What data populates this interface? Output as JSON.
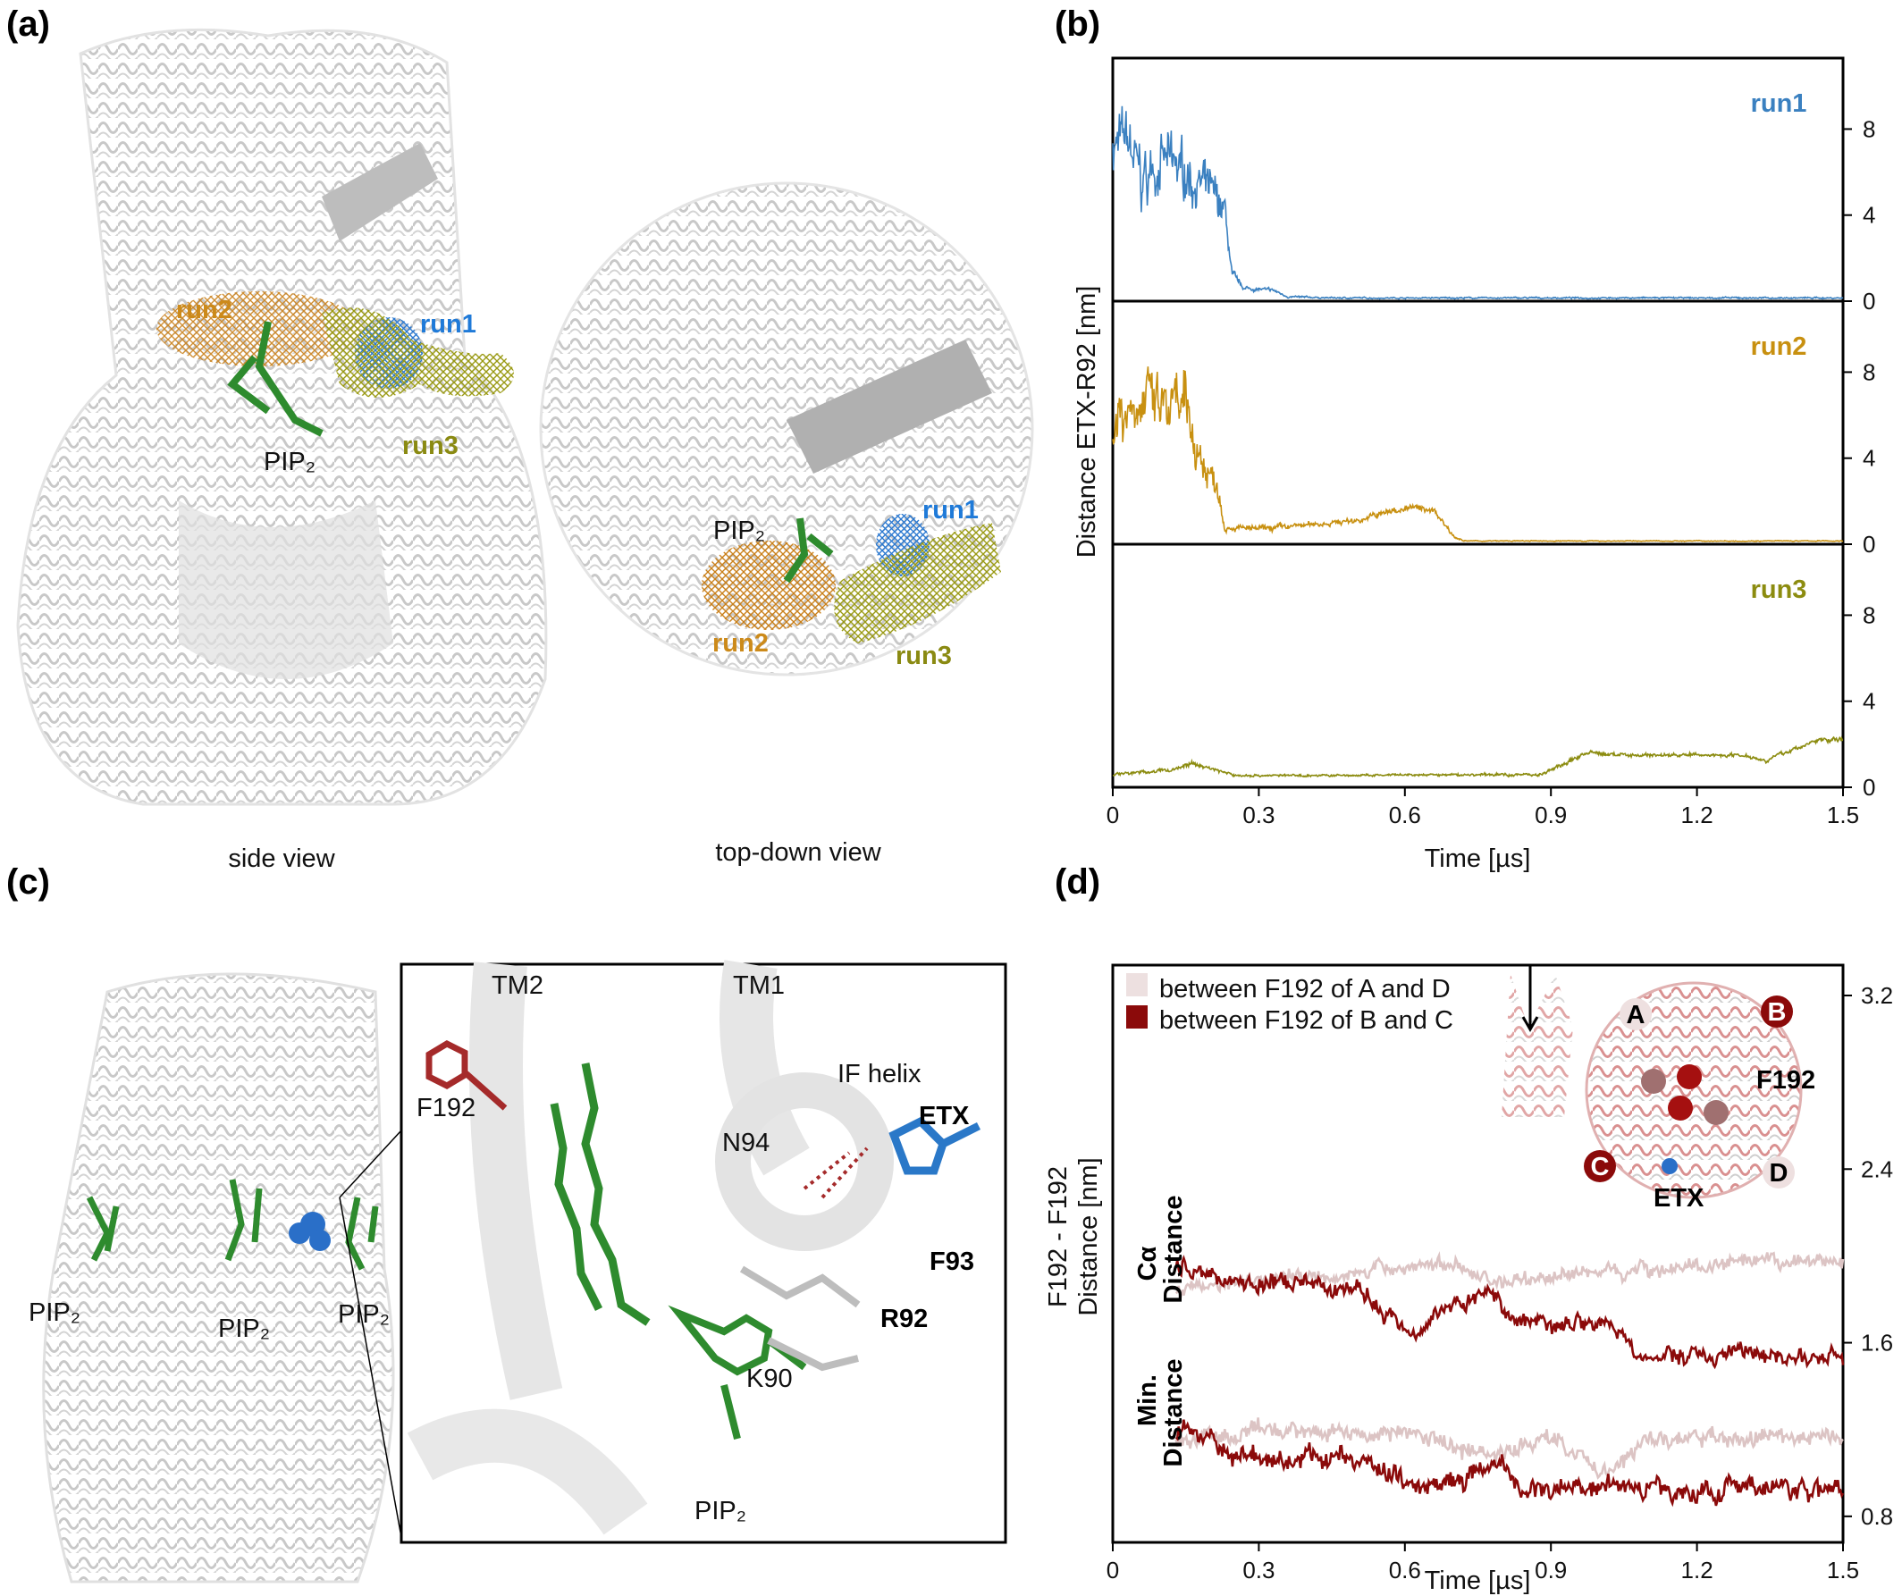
{
  "panel_labels": {
    "a": "(a)",
    "b": "(b)",
    "c": "(c)",
    "d": "(d)"
  },
  "panel_a": {
    "side_view": {
      "caption": "side view",
      "run1": "run1",
      "run2": "run2",
      "run3": "run3",
      "pip2": "PIP₂"
    },
    "top_view": {
      "caption": "top-down view",
      "run1": "run1",
      "run2": "run2",
      "run3": "run3",
      "pip2": "PIP₂"
    },
    "colors": {
      "run1": "#1f7ad8",
      "run2": "#cc8a1a",
      "run3": "#8a8a12",
      "pip2": "#2e8b2e"
    }
  },
  "panel_c": {
    "overview_labels": [
      "PIP₂",
      "PIP₂",
      "PIP₂"
    ],
    "inset_labels": {
      "tm2": "TM2",
      "tm1": "TM1",
      "if_helix": "IF helix",
      "etx": "ETX",
      "f192": "F192",
      "n94": "N94",
      "f93": "F93",
      "r92": "R92",
      "k90": "K90",
      "pip2": "PIP₂"
    }
  },
  "panel_d_inset": {
    "a": "A",
    "b": "B",
    "c": "C",
    "d": "D",
    "f192": "F192",
    "etx": "ETX"
  },
  "chart_data": [
    {
      "type": "line",
      "panel": "b",
      "title": "",
      "xlabel": "Time [µs]",
      "ylabel": "Distance ETX-R92 [nm]",
      "xlim": [
        0,
        1.5
      ],
      "ylim": [
        0,
        11.3
      ],
      "xticks": [
        "0",
        "0.3",
        "0.6",
        "0.9",
        "1.2",
        "1.5"
      ],
      "yticks": [
        "0",
        "4",
        "8"
      ],
      "grid": false,
      "layout": "three stacked subplots, shared x-axis, y-axis on right",
      "series": [
        {
          "name": "run1",
          "color": "#3a80c0",
          "t": [
            0,
            0.03,
            0.06,
            0.1,
            0.15,
            0.2,
            0.23,
            0.245,
            0.27,
            0.33,
            0.36,
            0.45,
            1.5
          ],
          "v": [
            7.2,
            7.5,
            5.5,
            6.5,
            6.0,
            5.0,
            4.2,
            1.2,
            0.6,
            0.5,
            0.2,
            0.15,
            0.15
          ],
          "noise": [
            1.8,
            1.8,
            2.0,
            1.8,
            1.8,
            1.4,
            1.0,
            0.3,
            0.15,
            0.1,
            0.06,
            0.05,
            0.05
          ]
        },
        {
          "name": "run2",
          "color": "#c89010",
          "t": [
            0,
            0.05,
            0.1,
            0.15,
            0.19,
            0.215,
            0.23,
            0.3,
            0.4,
            0.5,
            0.6,
            0.66,
            0.7,
            0.72,
            1.5
          ],
          "v": [
            6.0,
            6.8,
            6.2,
            6.0,
            3.5,
            2.8,
            0.8,
            0.7,
            0.9,
            1.1,
            1.7,
            1.6,
            0.4,
            0.15,
            0.15
          ],
          "noise": [
            2.2,
            2.0,
            2.0,
            2.2,
            1.2,
            0.8,
            0.2,
            0.2,
            0.18,
            0.2,
            0.25,
            0.25,
            0.1,
            0.03,
            0.03
          ]
        },
        {
          "name": "run3",
          "color": "#8c8c10",
          "t": [
            0,
            0.12,
            0.16,
            0.2,
            0.25,
            0.5,
            0.88,
            0.93,
            0.97,
            1.05,
            1.3,
            1.34,
            1.45,
            1.5
          ],
          "v": [
            0.6,
            0.8,
            1.1,
            0.9,
            0.55,
            0.55,
            0.6,
            1.1,
            1.6,
            1.5,
            1.5,
            1.25,
            2.2,
            2.2
          ],
          "noise": [
            0.1,
            0.12,
            0.15,
            0.12,
            0.08,
            0.07,
            0.1,
            0.15,
            0.15,
            0.12,
            0.12,
            0.12,
            0.15,
            0.15
          ]
        }
      ]
    },
    {
      "type": "line",
      "panel": "d",
      "title": "",
      "xlabel": "Time [µs]",
      "ylabel": [
        "F192 - F192",
        "Distance [nm]"
      ],
      "group_labels": [
        [
          "Cα",
          "Distance"
        ],
        [
          "Min.",
          "Distance"
        ]
      ],
      "xlim": [
        0,
        1.5
      ],
      "ylim": [
        0.68,
        3.34
      ],
      "xticks": [
        "0",
        "0.3",
        "0.6",
        "0.9",
        "1.2",
        "1.5"
      ],
      "yticks": [
        "0.8",
        "1.6",
        "2.4",
        "3.2"
      ],
      "grid": false,
      "legend": {
        "position": "top-left",
        "entries": [
          "between F192 of A and D",
          "between F192 of B and C"
        ]
      },
      "series": [
        {
          "name": "Cα between F192 of A and D",
          "color": "#dcc4c4",
          "t": [
            0.13,
            0.3,
            0.5,
            0.67,
            0.8,
            1.0,
            1.2,
            1.5
          ],
          "v": [
            1.85,
            1.9,
            1.92,
            1.97,
            1.88,
            1.93,
            1.95,
            1.98
          ],
          "noise": 0.05
        },
        {
          "name": "Cα between F192 of B and C",
          "color": "#8b0a0a",
          "t": [
            0.13,
            0.27,
            0.5,
            0.55,
            0.61,
            0.7,
            0.78,
            0.83,
            0.9,
            1.02,
            1.08,
            1.3,
            1.5
          ],
          "v": [
            1.95,
            1.88,
            1.85,
            1.75,
            1.66,
            1.78,
            1.83,
            1.7,
            1.7,
            1.7,
            1.53,
            1.55,
            1.52
          ],
          "noise": 0.06
        },
        {
          "name": "Min. between F192 of A and D",
          "color": "#dcc4c4",
          "t": [
            0.13,
            0.4,
            0.6,
            0.8,
            0.9,
            1.0,
            1.1,
            1.5
          ],
          "v": [
            1.15,
            1.2,
            1.18,
            1.08,
            1.18,
            1.0,
            1.15,
            1.17
          ],
          "noise": 0.06
        },
        {
          "name": "Min. between F192 of B and C",
          "color": "#8b0a0a",
          "t": [
            0.13,
            0.2,
            0.3,
            0.45,
            0.55,
            0.62,
            0.75,
            0.8,
            0.84,
            1.0,
            1.2,
            1.5
          ],
          "v": [
            1.18,
            1.15,
            1.05,
            1.08,
            1.02,
            0.95,
            1.0,
            1.02,
            0.92,
            0.95,
            0.92,
            0.93
          ],
          "noise": 0.07
        }
      ]
    }
  ]
}
